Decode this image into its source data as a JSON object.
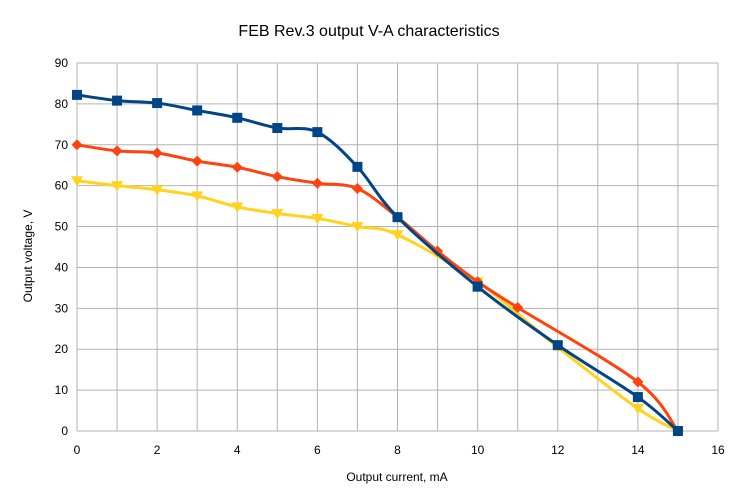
{
  "chart_data": {
    "type": "line",
    "title": "FEB Rev.3 output V-A characteristics",
    "xlabel": "Output current, mA",
    "ylabel": "Output voltage, V",
    "xlim": [
      0,
      16
    ],
    "ylim": [
      0,
      90
    ],
    "xticks": [
      "0",
      "2",
      "4",
      "6",
      "8",
      "10",
      "12",
      "14",
      "16"
    ],
    "yticks": [
      "0",
      "10",
      "20",
      "30",
      "40",
      "50",
      "60",
      "70",
      "80",
      "90"
    ],
    "grid": true,
    "legend": "none",
    "series": [
      {
        "name": "series-yellow",
        "color": "#ffd320",
        "marker": "triangle-down",
        "x": [
          0,
          1,
          2,
          3,
          4,
          5,
          6,
          7,
          8,
          10,
          12,
          14,
          15
        ],
        "y": [
          61.2,
          60.0,
          59.0,
          57.5,
          54.8,
          53.2,
          52.0,
          50.0,
          48.0,
          36.5,
          20.5,
          5.5,
          0
        ]
      },
      {
        "name": "series-orange",
        "color": "#ff420e",
        "marker": "diamond",
        "x": [
          0,
          1,
          2,
          3,
          4,
          5,
          6,
          7,
          8,
          9,
          10,
          11,
          14,
          15
        ],
        "y": [
          70.0,
          68.5,
          68.0,
          66.0,
          64.5,
          62.2,
          60.6,
          59.3,
          52.3,
          44.0,
          36.5,
          30.2,
          12.0,
          0
        ]
      },
      {
        "name": "series-blue",
        "color": "#004586",
        "marker": "square",
        "x": [
          0,
          1,
          2,
          3,
          4,
          5,
          6,
          7,
          8,
          10,
          12,
          14,
          15
        ],
        "y": [
          82.2,
          80.8,
          80.2,
          78.4,
          76.6,
          74.1,
          73.1,
          64.6,
          52.3,
          35.3,
          21.0,
          8.3,
          0
        ]
      }
    ]
  }
}
